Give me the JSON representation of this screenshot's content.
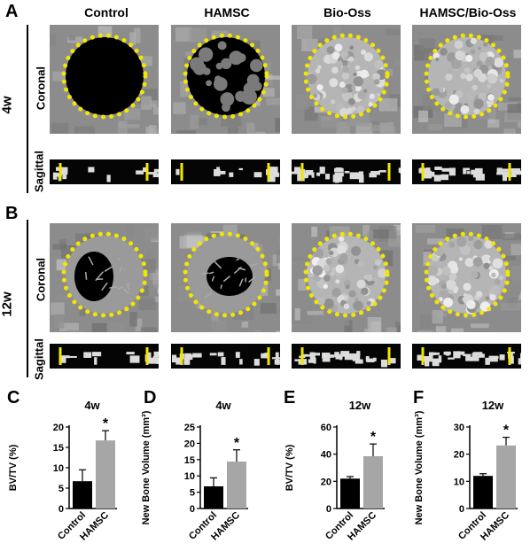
{
  "figure": {
    "panels": {
      "a": "A",
      "b": "B",
      "c": "C",
      "d": "D",
      "e": "E",
      "f": "F"
    },
    "columns": [
      "Control",
      "HAMSC",
      "Bio-Oss",
      "HAMSC/Bio-Oss"
    ],
    "rows": [
      {
        "time": "4w",
        "coronal": "Coronal",
        "sagittal": "Sagittal"
      },
      {
        "time": "12w",
        "coronal": "Coronal",
        "sagittal": "Sagittal"
      }
    ],
    "colors": {
      "outline": "#f2e600",
      "control_bar": "#000000",
      "hamsc_bar": "#a6a6a6"
    }
  },
  "chart_data": [
    {
      "type": "bar",
      "panel": "C",
      "title": "4w",
      "ylabel": "BV/TV (%)",
      "categories": [
        "Control",
        "HAMSC"
      ],
      "values": [
        6.7,
        16.7
      ],
      "errors": [
        2.8,
        2.4
      ],
      "ylim": [
        0,
        20
      ],
      "yticks": [
        "0",
        "5",
        "10",
        "15",
        "20"
      ],
      "significance": "*"
    },
    {
      "type": "bar",
      "panel": "D",
      "title": "4w",
      "ylabel": "New Bone Volume (mm³)",
      "categories": [
        "Control",
        "HAMSC"
      ],
      "values": [
        6.8,
        14.4
      ],
      "errors": [
        2.6,
        3.6
      ],
      "ylim": [
        0,
        25
      ],
      "yticks": [
        "0",
        "5",
        "10",
        "15",
        "20",
        "25"
      ],
      "significance": "*"
    },
    {
      "type": "bar",
      "panel": "E",
      "title": "12w",
      "ylabel": "BV/TV (%)",
      "categories": [
        "Control",
        "HAMSC"
      ],
      "values": [
        22,
        38.5
      ],
      "errors": [
        1.5,
        9
      ],
      "ylim": [
        0,
        60
      ],
      "yticks": [
        "0",
        "20",
        "40",
        "60"
      ],
      "significance": "*"
    },
    {
      "type": "bar",
      "panel": "F",
      "title": "12w",
      "ylabel": "New Bone Volume (mm³)",
      "categories": [
        "Control",
        "HAMSC"
      ],
      "values": [
        12,
        23.2
      ],
      "errors": [
        0.8,
        3
      ],
      "ylim": [
        0,
        30
      ],
      "yticks": [
        "0",
        "10",
        "20",
        "30"
      ],
      "significance": "*"
    }
  ]
}
